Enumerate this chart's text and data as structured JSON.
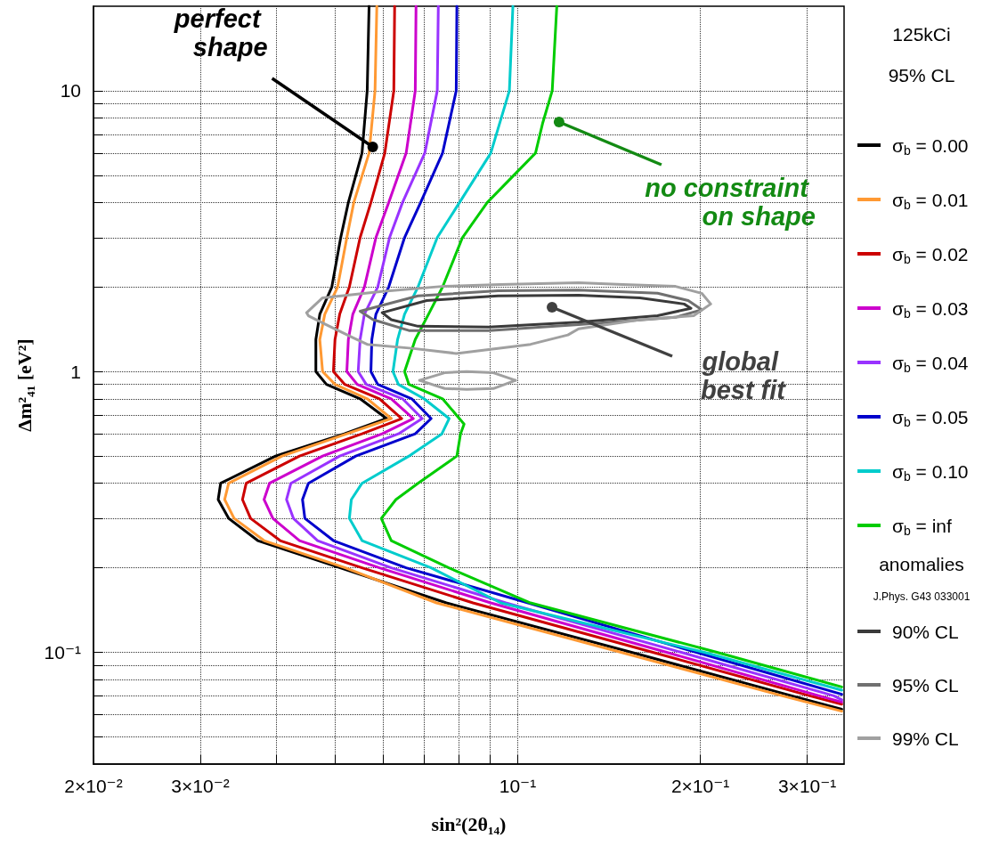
{
  "chart_data": {
    "type": "line",
    "xlabel": "sin²(2θ₁₄)",
    "ylabel": "Δm²₄₁ [eV²]",
    "legend_title": "125kCi",
    "log": "xy",
    "grid": true,
    "legend": "right",
    "marker": "none",
    "line_style": "solid",
    "xlim": [
      0.02,
      0.345
    ],
    "ylim": [
      0.04,
      20
    ],
    "xticks": [
      {
        "value": 0.02,
        "label": "2×10⁻²"
      },
      {
        "value": 0.03,
        "label": "3×10⁻²"
      },
      {
        "value": 0.04,
        "label": null
      },
      {
        "value": 0.05,
        "label": null
      },
      {
        "value": 0.06,
        "label": null
      },
      {
        "value": 0.07,
        "label": null
      },
      {
        "value": 0.08,
        "label": null
      },
      {
        "value": 0.09,
        "label": null
      },
      {
        "value": 0.1,
        "label": "10⁻¹"
      },
      {
        "value": 0.2,
        "label": "2×10⁻¹"
      },
      {
        "value": 0.3,
        "label": "3×10⁻¹"
      }
    ],
    "yticks": [
      {
        "value": 0.05,
        "label": null
      },
      {
        "value": 0.06,
        "label": null
      },
      {
        "value": 0.07,
        "label": null
      },
      {
        "value": 0.08,
        "label": null
      },
      {
        "value": 0.09,
        "label": null
      },
      {
        "value": 0.1,
        "label": "10⁻¹"
      },
      {
        "value": 0.2,
        "label": null
      },
      {
        "value": 0.3,
        "label": null
      },
      {
        "value": 0.4,
        "label": null
      },
      {
        "value": 0.5,
        "label": null
      },
      {
        "value": 0.6,
        "label": null
      },
      {
        "value": 0.7,
        "label": null
      },
      {
        "value": 0.8,
        "label": null
      },
      {
        "value": 0.9,
        "label": null
      },
      1,
      {
        "value": 2,
        "label": null
      },
      {
        "value": 3,
        "label": null
      },
      {
        "value": 4,
        "label": null
      },
      {
        "value": 5,
        "label": null
      },
      {
        "value": 6,
        "label": null
      },
      {
        "value": 7,
        "label": null
      },
      {
        "value": 8,
        "label": null
      },
      {
        "value": 9,
        "label": null
      },
      10
    ],
    "series": [
      {
        "name": "σ$_{b}$ = 0.00",
        "color": "#000000",
        "x": [
          0.0569,
          0.0565,
          0.0554,
          0.0526,
          0.0511,
          0.0494,
          0.0472,
          0.0465,
          0.0465,
          0.0484,
          0.055,
          0.0608,
          0.0518,
          0.0399,
          0.0324,
          0.0321,
          0.0334,
          0.0373,
          0.051,
          0.0763,
          0.154,
          0.283,
          0.342
        ],
        "values": [
          20,
          10,
          6,
          4,
          3,
          2,
          1.6,
          1.3,
          1,
          0.9,
          0.8,
          0.68,
          0.6,
          0.5,
          0.4,
          0.35,
          0.3,
          0.25,
          0.2,
          0.15,
          0.1,
          0.07,
          0.0627
        ]
      },
      {
        "name": "σ$_{b}$ = 0.01",
        "color": "#ff9933",
        "x": [
          0.0586,
          0.0582,
          0.0569,
          0.0537,
          0.0523,
          0.0505,
          0.0481,
          0.0472,
          0.0477,
          0.05,
          0.0565,
          0.0619,
          0.0523,
          0.0409,
          0.0334,
          0.0329,
          0.0341,
          0.0382,
          0.052,
          0.0735,
          0.148,
          0.273,
          0.342
        ],
        "values": [
          20,
          10,
          6,
          4,
          3,
          2,
          1.6,
          1.3,
          1,
          0.9,
          0.8,
          0.68,
          0.6,
          0.5,
          0.4,
          0.35,
          0.3,
          0.25,
          0.2,
          0.15,
          0.1,
          0.07,
          0.0617
        ]
      },
      {
        "name": "σ$_{b}$ = 0.02",
        "color": "#cc0000",
        "x": [
          0.0627,
          0.0625,
          0.0604,
          0.0573,
          0.055,
          0.0528,
          0.0509,
          0.05,
          0.0497,
          0.0519,
          0.0592,
          0.0644,
          0.0554,
          0.0437,
          0.0357,
          0.0352,
          0.0363,
          0.0406,
          0.0554,
          0.0844,
          0.167,
          0.303,
          0.342
        ],
        "values": [
          20,
          10,
          6,
          4,
          3,
          2,
          1.6,
          1.3,
          1,
          0.9,
          0.8,
          0.68,
          0.6,
          0.5,
          0.4,
          0.35,
          0.3,
          0.25,
          0.2,
          0.15,
          0.1,
          0.07,
          0.0654
        ]
      },
      {
        "name": "σ$_{b}$ = 0.03",
        "color": "#cc00cc",
        "x": [
          0.068,
          0.0678,
          0.0655,
          0.0613,
          0.0584,
          0.0559,
          0.0535,
          0.0526,
          0.0523,
          0.0544,
          0.0619,
          0.0673,
          0.0598,
          0.0477,
          0.039,
          0.0382,
          0.0395,
          0.0437,
          0.0592,
          0.0903,
          0.176,
          0.314,
          0.342
        ],
        "values": [
          20,
          10,
          6,
          4,
          3,
          2,
          1.6,
          1.3,
          1,
          0.9,
          0.8,
          0.68,
          0.6,
          0.5,
          0.4,
          0.35,
          0.3,
          0.25,
          0.2,
          0.15,
          0.1,
          0.07,
          0.0665
        ]
      },
      {
        "name": "σ$_{b}$ = 0.04",
        "color": "#9933ff",
        "x": [
          0.074,
          0.0737,
          0.0703,
          0.0646,
          0.0615,
          0.0588,
          0.0559,
          0.055,
          0.0546,
          0.0563,
          0.0646,
          0.0696,
          0.0636,
          0.0509,
          0.0423,
          0.0416,
          0.0427,
          0.0468,
          0.0619,
          0.0956,
          0.186,
          0.332,
          0.342
        ],
        "values": [
          20,
          10,
          6,
          4,
          3,
          2,
          1.6,
          1.3,
          1,
          0.9,
          0.8,
          0.68,
          0.6,
          0.5,
          0.4,
          0.35,
          0.3,
          0.25,
          0.2,
          0.15,
          0.1,
          0.07,
          0.0677
        ]
      },
      {
        "name": "σ$_{b}$ = 0.05",
        "color": "#0000cc",
        "x": [
          0.0794,
          0.0792,
          0.0752,
          0.0692,
          0.0651,
          0.0613,
          0.0584,
          0.0575,
          0.0573,
          0.0588,
          0.0669,
          0.072,
          0.0678,
          0.0541,
          0.0452,
          0.0442,
          0.0446,
          0.0497,
          0.0655,
          0.104,
          0.197,
          0.342
        ],
        "values": [
          20,
          10,
          6,
          4,
          3,
          2,
          1.6,
          1.3,
          1,
          0.9,
          0.8,
          0.68,
          0.6,
          0.5,
          0.4,
          0.35,
          0.3,
          0.25,
          0.2,
          0.15,
          0.1,
          0.0709
        ]
      },
      {
        "name": "σ$_{b}$ = 0.10",
        "color": "#00cccc",
        "x": [
          0.0982,
          0.0969,
          0.0903,
          0.0802,
          0.0737,
          0.0685,
          0.0651,
          0.0634,
          0.0623,
          0.0636,
          0.0701,
          0.0771,
          0.075,
          0.0662,
          0.0554,
          0.0532,
          0.0528,
          0.0554,
          0.072,
          0.0938,
          0.203,
          0.342
        ],
        "values": [
          20,
          10,
          6,
          4,
          3,
          2,
          1.6,
          1.3,
          1,
          0.9,
          0.8,
          0.68,
          0.6,
          0.5,
          0.4,
          0.35,
          0.3,
          0.25,
          0.2,
          0.15,
          0.1,
          0.0733
        ]
      },
      {
        "name": "σ$_{b}$ = inf",
        "color": "#00cc00",
        "x": [
          0.116,
          0.114,
          0.11,
          0.107,
          0.0891,
          0.0811,
          0.0752,
          0.0713,
          0.0678,
          0.0651,
          0.0662,
          0.0752,
          0.0816,
          0.0805,
          0.0794,
          0.0685,
          0.063,
          0.0596,
          0.0619,
          0.077,
          0.105,
          0.213,
          0.342
        ],
        "values": [
          20,
          10,
          7.7,
          6,
          4,
          3,
          2,
          1.6,
          1.3,
          1,
          0.9,
          0.8,
          0.65,
          0.6,
          0.5,
          0.4,
          0.35,
          0.3,
          0.25,
          0.2,
          0.15,
          0.1,
          0.0753
        ]
      },
      {
        "name": "90% CL",
        "color": "#3a3a3a",
        "x": [
          0.0598,
          0.0708,
          0.0928,
          0.126,
          0.159,
          0.188,
          0.193,
          null,
          0.193,
          0.17,
          0.126,
          0.0897,
          0.0685,
          0.0619,
          0.0598
        ],
        "values": [
          1.62,
          1.79,
          1.86,
          1.87,
          1.83,
          1.74,
          1.68,
          null,
          1.68,
          1.58,
          1.5,
          1.44,
          1.45,
          1.53,
          1.62
        ]
      },
      {
        "name": "95% CL",
        "color": "#707070",
        "x": [
          0.055,
          0.0685,
          0.0928,
          0.126,
          0.17,
          0.191,
          0.201,
          null,
          0.201,
          0.182,
          0.126,
          0.0897,
          0.0662,
          0.0578,
          0.055
        ],
        "values": [
          1.64,
          1.86,
          1.94,
          1.95,
          1.9,
          1.79,
          1.66,
          null,
          1.66,
          1.56,
          1.47,
          1.4,
          1.4,
          1.53,
          1.64
        ]
      },
      {
        "name": "99% CL",
        "color": "#a0a0a0",
        "x": [
          0.0449,
          0.0477,
          0.0598,
          0.075,
          0.0936,
          0.126,
          0.149,
          0.182,
          0.201,
          0.208,
          null,
          0.208,
          0.195,
          0.159,
          0.126,
          0.121,
          0.105,
          0.0792,
          0.0669,
          0.0565,
          0.0535,
          0.0477,
          0.0452,
          0.0449,
          null,
          0.0689,
          0.0758,
          0.0824,
          0.0912,
          0.0992,
          null,
          0.0992,
          0.0912,
          0.0824,
          0.0758,
          0.0689
        ],
        "values": [
          1.62,
          1.83,
          1.93,
          2.01,
          2.04,
          2.07,
          2.04,
          2.01,
          1.9,
          1.74,
          null,
          1.74,
          1.58,
          1.53,
          1.42,
          1.35,
          1.25,
          1.16,
          1.21,
          1.25,
          1.32,
          1.49,
          1.58,
          1.62,
          null,
          0.93,
          0.99,
          1.0,
          0.99,
          0.93,
          null,
          0.93,
          0.87,
          0.864,
          0.87,
          0.93
        ]
      }
    ],
    "annotations": [
      "95% CL",
      "anomalies",
      "J.Phys. G43 033001",
      "global best fit",
      {
        "text": "perfect shape",
        "x": 0.0577,
        "y": 6.31
      },
      {
        "text": "no constraint on shape",
        "x": 0.117,
        "y": 7.74
      }
    ]
  }
}
